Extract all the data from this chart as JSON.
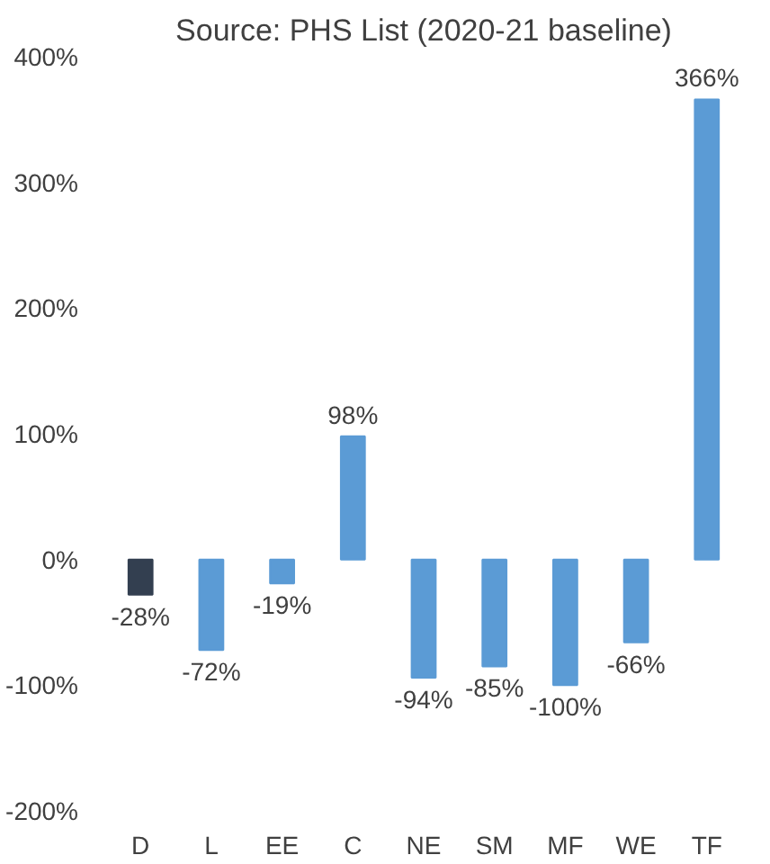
{
  "chart_data": {
    "type": "bar",
    "title": "Source: PHS List (2020-21 baseline)",
    "categories": [
      "D",
      "L",
      "EE",
      "C",
      "NE",
      "SM",
      "MF",
      "WE",
      "TF"
    ],
    "values": [
      -28,
      -72,
      -19,
      98,
      -94,
      -85,
      -100,
      -66,
      366
    ],
    "colors": [
      "#333f50",
      "#5b9bd5",
      "#5b9bd5",
      "#5b9bd5",
      "#5b9bd5",
      "#5b9bd5",
      "#5b9bd5",
      "#5b9bd5",
      "#5b9bd5"
    ],
    "value_labels": [
      "-28%",
      "-72%",
      "-19%",
      "98%",
      "-94%",
      "-85%",
      "-100%",
      "-66%",
      "366%"
    ],
    "ylim": [
      -200,
      400
    ],
    "yticks": [
      {
        "value": -200,
        "label": "-200%"
      },
      {
        "value": -100,
        "label": "-100%"
      },
      {
        "value": 0,
        "label": "0%"
      },
      {
        "value": 100,
        "label": "100%"
      },
      {
        "value": 200,
        "label": "200%"
      },
      {
        "value": 300,
        "label": "300%"
      },
      {
        "value": 400,
        "label": "400%"
      }
    ],
    "grid": false
  }
}
